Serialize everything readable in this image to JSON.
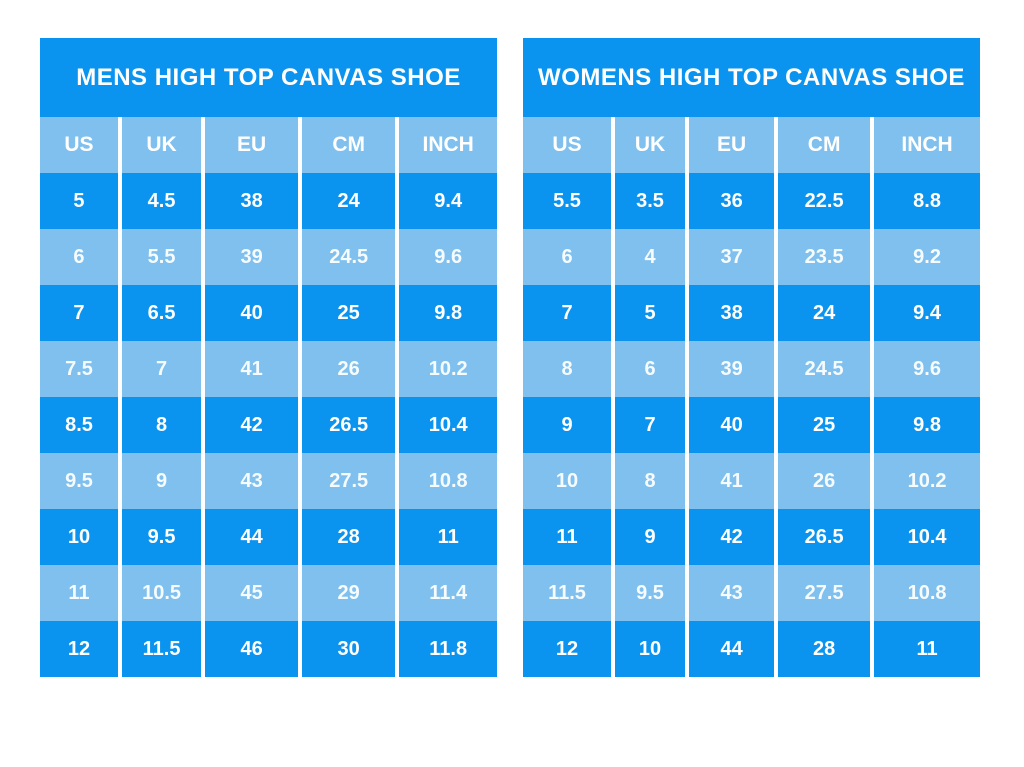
{
  "colors": {
    "row_dark": "#0a94f0",
    "row_light": "#7fc0ee",
    "separator": "#ffffff",
    "text": "#ffffff",
    "background": "#ffffff"
  },
  "chart_data": [
    {
      "type": "table",
      "title": "MENS HIGH TOP CANVAS SHOE",
      "columns": [
        "US",
        "UK",
        "EU",
        "CM",
        "INCH"
      ],
      "rows": [
        [
          "5",
          "4.5",
          "38",
          "24",
          "9.4"
        ],
        [
          "6",
          "5.5",
          "39",
          "24.5",
          "9.6"
        ],
        [
          "7",
          "6.5",
          "40",
          "25",
          "9.8"
        ],
        [
          "7.5",
          "7",
          "41",
          "26",
          "10.2"
        ],
        [
          "8.5",
          "8",
          "42",
          "26.5",
          "10.4"
        ],
        [
          "9.5",
          "9",
          "43",
          "27.5",
          "10.8"
        ],
        [
          "10",
          "9.5",
          "44",
          "28",
          "11"
        ],
        [
          "11",
          "10.5",
          "45",
          "29",
          "11.4"
        ],
        [
          "12",
          "11.5",
          "46",
          "30",
          "11.8"
        ]
      ]
    },
    {
      "type": "table",
      "title": "WOMENS HIGH TOP CANVAS SHOE",
      "columns": [
        "US",
        "UK",
        "EU",
        "CM",
        "INCH"
      ],
      "rows": [
        [
          "5.5",
          "3.5",
          "36",
          "22.5",
          "8.8"
        ],
        [
          "6",
          "4",
          "37",
          "23.5",
          "9.2"
        ],
        [
          "7",
          "5",
          "38",
          "24",
          "9.4"
        ],
        [
          "8",
          "6",
          "39",
          "24.5",
          "9.6"
        ],
        [
          "9",
          "7",
          "40",
          "25",
          "9.8"
        ],
        [
          "10",
          "8",
          "41",
          "26",
          "10.2"
        ],
        [
          "11",
          "9",
          "42",
          "26.5",
          "10.4"
        ],
        [
          "11.5",
          "9.5",
          "43",
          "27.5",
          "10.8"
        ],
        [
          "12",
          "10",
          "44",
          "28",
          "11"
        ]
      ]
    }
  ]
}
